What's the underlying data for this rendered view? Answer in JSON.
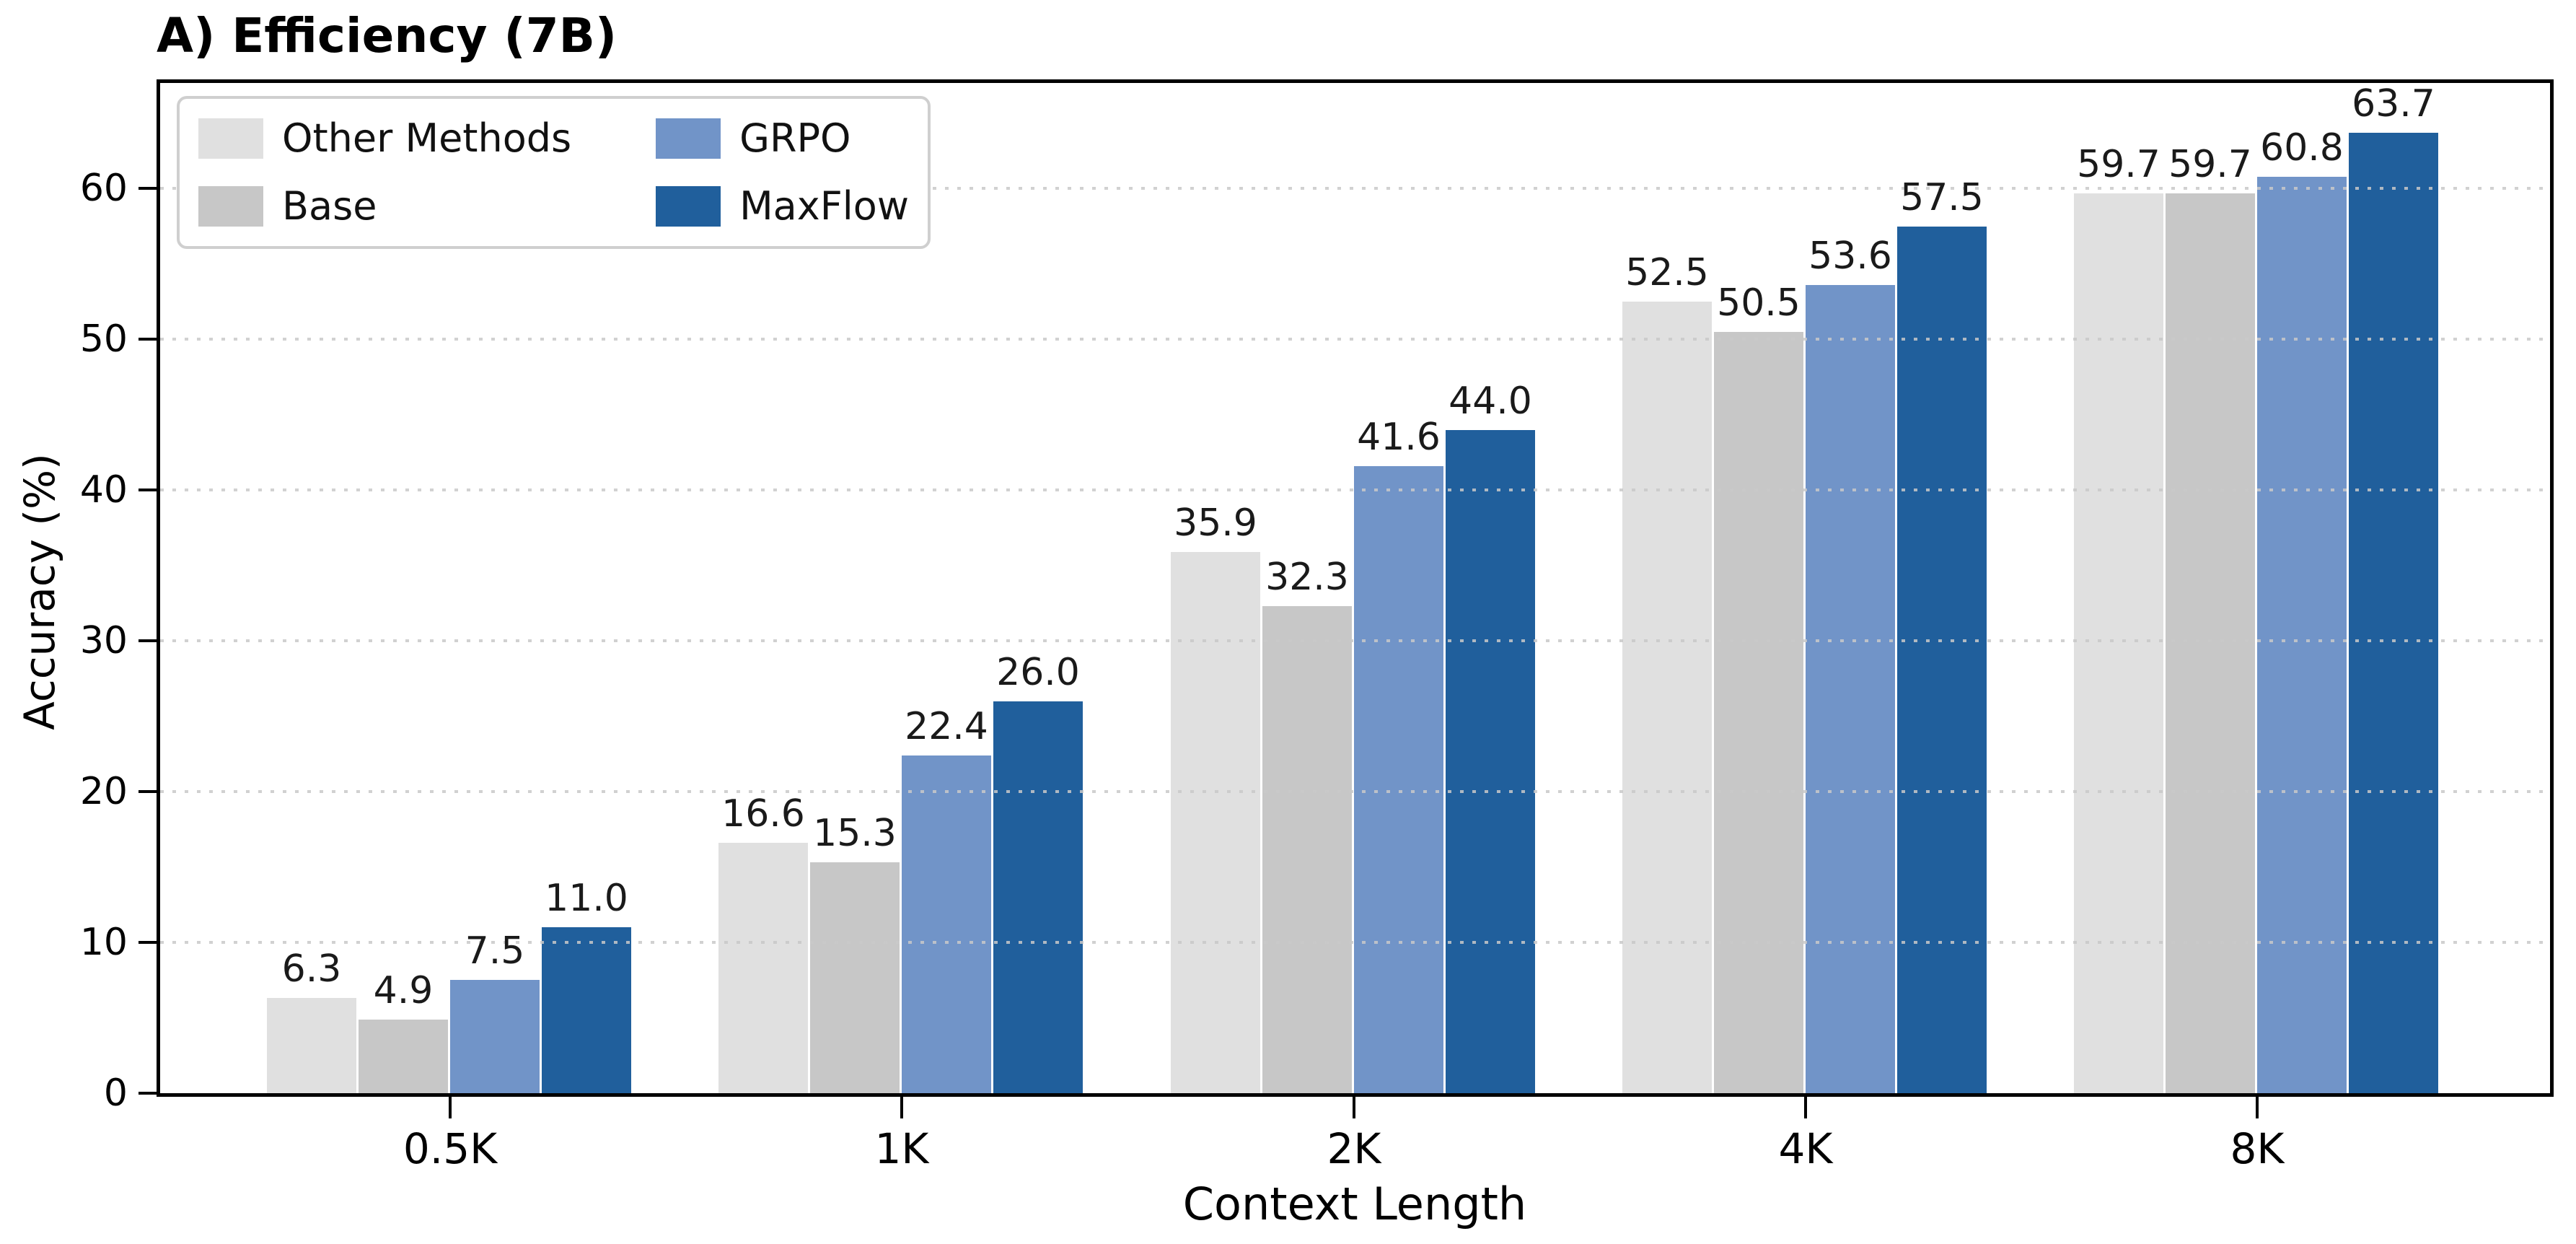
{
  "title": "A) Efficiency (7B)",
  "chart_data": {
    "type": "bar",
    "categories": [
      "0.5K",
      "1K",
      "2K",
      "4K",
      "8K"
    ],
    "series": [
      {
        "name": "Other Methods",
        "color": "#e0e0e0",
        "values": [
          6.3,
          16.6,
          35.9,
          52.5,
          59.7
        ]
      },
      {
        "name": "Base",
        "color": "#c7c7c7",
        "values": [
          4.9,
          15.3,
          32.3,
          50.5,
          59.7
        ]
      },
      {
        "name": "GRPO",
        "color": "#7194c8",
        "values": [
          7.5,
          22.4,
          41.6,
          53.6,
          60.8
        ]
      },
      {
        "name": "MaxFlow",
        "color": "#205f9c",
        "values": [
          11.0,
          26.0,
          44.0,
          57.5,
          63.7
        ]
      }
    ],
    "xlabel": "Context Length",
    "ylabel": "Accuracy (%)",
    "ylim": [
      0,
      67
    ],
    "yticks": [
      0,
      10,
      20,
      30,
      40,
      50,
      60
    ],
    "value_label_format": "one_decimal",
    "grid": "horizontal-dotted",
    "legend_position": "upper-left",
    "legend_columns": 2
  }
}
